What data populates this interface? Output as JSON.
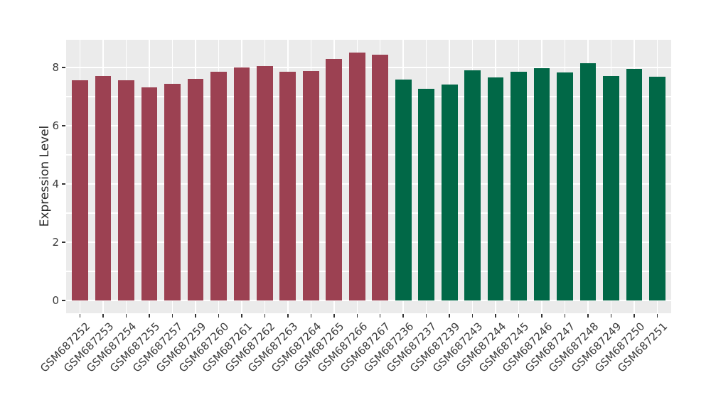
{
  "chart_data": {
    "type": "bar",
    "title": "",
    "xlabel": "",
    "ylabel": "Expression Level",
    "ylim": [
      -0.44,
      8.95
    ],
    "yticks_labeled": [
      0,
      2,
      4,
      6,
      8
    ],
    "gridlines_y": [
      0,
      1,
      2,
      3,
      4,
      5,
      6,
      7,
      8
    ],
    "grid": "white gridlines on grey panel, verticals at each category center",
    "legend_position": "none",
    "bar_width_frac": 0.7,
    "categories": [
      "GSM687252",
      "GSM687253",
      "GSM687254",
      "GSM687255",
      "GSM687257",
      "GSM687259",
      "GSM687260",
      "GSM687261",
      "GSM687262",
      "GSM687263",
      "GSM687264",
      "GSM687265",
      "GSM687266",
      "GSM687267",
      "GSM687236",
      "GSM687237",
      "GSM687239",
      "GSM687243",
      "GSM687244",
      "GSM687245",
      "GSM687246",
      "GSM687247",
      "GSM687248",
      "GSM687249",
      "GSM687250",
      "GSM687251"
    ],
    "values": [
      7.55,
      7.71,
      7.57,
      7.31,
      7.45,
      7.61,
      7.86,
      8.01,
      8.04,
      7.86,
      7.87,
      8.28,
      8.52,
      8.43,
      7.58,
      7.27,
      7.41,
      7.89,
      7.65,
      7.85,
      7.97,
      7.83,
      8.14,
      7.7,
      7.94,
      7.68
    ],
    "groups": [
      {
        "name": "group-maroon",
        "color": "#9C4152",
        "start": 0,
        "count": 14
      },
      {
        "name": "group-green",
        "color": "#016847",
        "start": 14,
        "count": 12
      }
    ],
    "colors": {
      "panel_background": "#EBEBEB",
      "gridline": "#FFFFFF",
      "tick_mark": "#333333",
      "tick_label": "#3C3C3C",
      "axis_label": "#262626",
      "figure_background": "#FFFFFF"
    }
  }
}
